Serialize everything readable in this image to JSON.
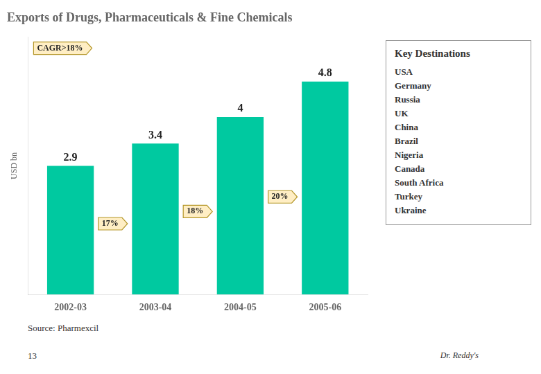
{
  "chart_data": {
    "type": "bar",
    "title": "Exports of Drugs, Pharmaceuticals & Fine Chemicals",
    "categories": [
      "2002-03",
      "2003-04",
      "2004-05",
      "2005-06"
    ],
    "values": [
      2.9,
      3.4,
      4.0,
      4.8
    ],
    "value_labels": [
      "2.9",
      "3.4",
      "4",
      "4.8"
    ],
    "data_labels": true,
    "color": "#00C9A0",
    "ylabel": "USD bn",
    "ylim": [
      0,
      5.8
    ],
    "grid": false,
    "tick_labels": "x",
    "annotations": [
      "CAGR>18%"
    ],
    "growth_labels": [
      "17%",
      "18%",
      "20%"
    ],
    "text_box": {
      "title": "Key Destinations",
      "items": [
        "USA",
        "Germany",
        "Russia",
        "UK",
        "China",
        "Brazil",
        "Nigeria",
        "Canada",
        "South Africa",
        "Turkey",
        "Ukraine"
      ]
    },
    "source": "Source: Pharmexcil",
    "page_number": "13",
    "footer": "Dr. Reddy's"
  }
}
